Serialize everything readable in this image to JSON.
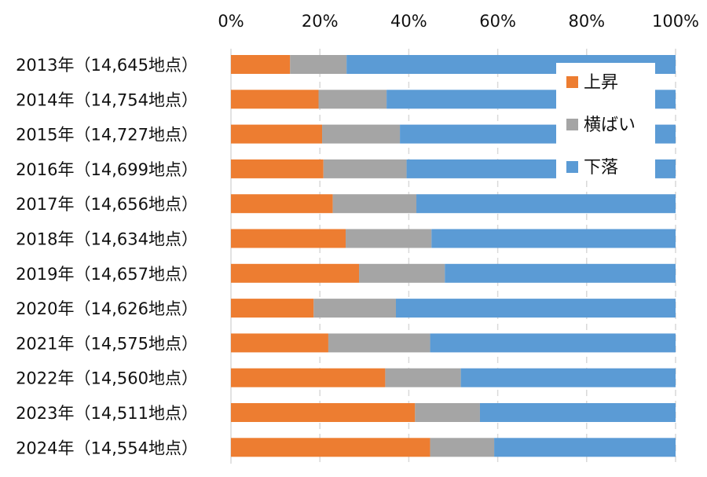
{
  "chart_data": {
    "type": "bar",
    "orientation": "horizontal",
    "stacked": "percent",
    "title": "",
    "xlabel": "",
    "ylabel": "",
    "xlim": [
      0,
      100
    ],
    "x_ticks": [
      "0%",
      "20%",
      "40%",
      "60%",
      "80%",
      "100%"
    ],
    "x_axis_position": "top",
    "grid": "vertical dashed",
    "legend_position": "top-right (inside)",
    "categories": [
      "2013年（14,645地点）",
      "2014年（14,754地点）",
      "2015年（14,727地点）",
      "2016年（14,699地点）",
      "2017年（14,656地点）",
      "2018年（14,634地点）",
      "2019年（14,657地点）",
      "2020年（14,626地点）",
      "2021年（14,575地点）",
      "2022年（14,560地点）",
      "2023年（14,511地点）",
      "2024年（14,554地点）"
    ],
    "series": [
      {
        "name": "上昇",
        "color": "#ED7D31",
        "values": [
          13.3,
          19.7,
          20.5,
          20.8,
          22.9,
          25.8,
          28.8,
          18.6,
          21.9,
          34.7,
          41.4,
          44.8
        ]
      },
      {
        "name": "横ばい",
        "color": "#A5A5A5",
        "values": [
          12.7,
          15.3,
          17.5,
          18.7,
          18.8,
          19.3,
          19.3,
          18.5,
          22.9,
          17.0,
          14.6,
          14.4
        ]
      },
      {
        "name": "下落",
        "color": "#5B9BD5",
        "values": [
          74.0,
          65.0,
          62.0,
          60.5,
          58.3,
          54.9,
          51.9,
          62.9,
          55.2,
          48.3,
          44.0,
          40.8
        ]
      }
    ]
  }
}
